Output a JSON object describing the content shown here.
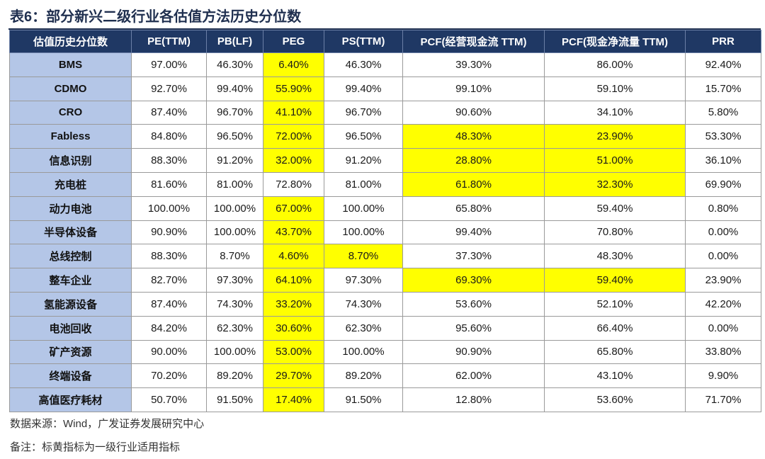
{
  "title": "表6：部分新兴二级行业各估值方法历史分位数",
  "table": {
    "headers": [
      "估值历史分位数",
      "PE(TTM)",
      "PB(LF)",
      "PEG",
      "PS(TTM)",
      "PCF(经营现金流 TTM)",
      "PCF(现金净流量 TTM)",
      "PRR"
    ],
    "rows": [
      {
        "name": "BMS",
        "values": [
          "97.00%",
          "46.30%",
          "6.40%",
          "46.30%",
          "39.30%",
          "86.00%",
          "92.40%"
        ],
        "highlight": [
          false,
          false,
          true,
          false,
          false,
          false,
          false
        ]
      },
      {
        "name": "CDMO",
        "values": [
          "92.70%",
          "99.40%",
          "55.90%",
          "99.40%",
          "99.10%",
          "59.10%",
          "15.70%"
        ],
        "highlight": [
          false,
          false,
          true,
          false,
          false,
          false,
          false
        ]
      },
      {
        "name": "CRO",
        "values": [
          "87.40%",
          "96.70%",
          "41.10%",
          "96.70%",
          "90.60%",
          "34.10%",
          "5.80%"
        ],
        "highlight": [
          false,
          false,
          true,
          false,
          false,
          false,
          false
        ]
      },
      {
        "name": "Fabless",
        "values": [
          "84.80%",
          "96.50%",
          "72.00%",
          "96.50%",
          "48.30%",
          "23.90%",
          "53.30%"
        ],
        "highlight": [
          false,
          false,
          true,
          false,
          true,
          true,
          false
        ]
      },
      {
        "name": "信息识别",
        "values": [
          "88.30%",
          "91.20%",
          "32.00%",
          "91.20%",
          "28.80%",
          "51.00%",
          "36.10%"
        ],
        "highlight": [
          false,
          false,
          true,
          false,
          true,
          true,
          false
        ]
      },
      {
        "name": "充电桩",
        "values": [
          "81.60%",
          "81.00%",
          "72.80%",
          "81.00%",
          "61.80%",
          "32.30%",
          "69.90%"
        ],
        "highlight": [
          false,
          false,
          false,
          false,
          true,
          true,
          false
        ]
      },
      {
        "name": "动力电池",
        "values": [
          "100.00%",
          "100.00%",
          "67.00%",
          "100.00%",
          "65.80%",
          "59.40%",
          "0.80%"
        ],
        "highlight": [
          false,
          false,
          true,
          false,
          false,
          false,
          false
        ]
      },
      {
        "name": "半导体设备",
        "values": [
          "90.90%",
          "100.00%",
          "43.70%",
          "100.00%",
          "99.40%",
          "70.80%",
          "0.00%"
        ],
        "highlight": [
          false,
          false,
          true,
          false,
          false,
          false,
          false
        ]
      },
      {
        "name": "总线控制",
        "values": [
          "88.30%",
          "8.70%",
          "4.60%",
          "8.70%",
          "37.30%",
          "48.30%",
          "0.00%"
        ],
        "highlight": [
          false,
          false,
          true,
          true,
          false,
          false,
          false
        ]
      },
      {
        "name": "整车企业",
        "values": [
          "82.70%",
          "97.30%",
          "64.10%",
          "97.30%",
          "69.30%",
          "59.40%",
          "23.90%"
        ],
        "highlight": [
          false,
          false,
          true,
          false,
          true,
          true,
          false
        ]
      },
      {
        "name": "氢能源设备",
        "values": [
          "87.40%",
          "74.30%",
          "33.20%",
          "74.30%",
          "53.60%",
          "52.10%",
          "42.20%"
        ],
        "highlight": [
          false,
          false,
          true,
          false,
          false,
          false,
          false
        ]
      },
      {
        "name": "电池回收",
        "values": [
          "84.20%",
          "62.30%",
          "30.60%",
          "62.30%",
          "95.60%",
          "66.40%",
          "0.00%"
        ],
        "highlight": [
          false,
          false,
          true,
          false,
          false,
          false,
          false
        ]
      },
      {
        "name": "矿产资源",
        "values": [
          "90.00%",
          "100.00%",
          "53.00%",
          "100.00%",
          "90.90%",
          "65.80%",
          "33.80%"
        ],
        "highlight": [
          false,
          false,
          true,
          false,
          false,
          false,
          false
        ]
      },
      {
        "name": "终端设备",
        "values": [
          "70.20%",
          "89.20%",
          "29.70%",
          "89.20%",
          "62.00%",
          "43.10%",
          "9.90%"
        ],
        "highlight": [
          false,
          false,
          true,
          false,
          false,
          false,
          false
        ]
      },
      {
        "name": "高值医疗耗材",
        "values": [
          "50.70%",
          "91.50%",
          "17.40%",
          "91.50%",
          "12.80%",
          "53.60%",
          "71.70%"
        ],
        "highlight": [
          false,
          false,
          true,
          false,
          false,
          false,
          false
        ]
      }
    ]
  },
  "source_note": "数据来源：Wind，广发证券发展研究中心",
  "remark": "备注：标黄指标为一级行业适用指标",
  "colors": {
    "header_bg": "#1f3864",
    "row_header_bg": "#b4c6e7",
    "highlight": "#ffff00"
  }
}
